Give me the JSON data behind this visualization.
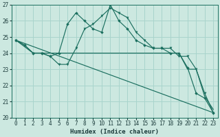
{
  "xlabel": "Humidex (Indice chaleur)",
  "xlim": [
    -0.5,
    23.5
  ],
  "ylim": [
    20,
    27
  ],
  "yticks": [
    20,
    21,
    22,
    23,
    24,
    25,
    26,
    27
  ],
  "xticks": [
    0,
    1,
    2,
    3,
    4,
    5,
    6,
    7,
    8,
    9,
    10,
    11,
    12,
    13,
    14,
    15,
    16,
    17,
    18,
    19,
    20,
    21,
    22,
    23
  ],
  "bg_color": "#cce8e0",
  "grid_color": "#a8d4cc",
  "line_color": "#1a6e5e",
  "line1_x": [
    0,
    1,
    2,
    3,
    4,
    5,
    6,
    7,
    8,
    9,
    10,
    11,
    12,
    13,
    14,
    15,
    16,
    17,
    18,
    19,
    20,
    21,
    22,
    23
  ],
  "line1_y": [
    24.8,
    24.5,
    24.0,
    24.0,
    23.8,
    24.0,
    25.8,
    26.5,
    26.0,
    25.5,
    25.3,
    27.0,
    26.0,
    25.5,
    24.8,
    24.5,
    24.3,
    24.3,
    24.0,
    24.0,
    23.1,
    21.5,
    21.2,
    20.3
  ],
  "line2_x": [
    0,
    1,
    2,
    3,
    4,
    5,
    6,
    7,
    8,
    9,
    10,
    11,
    12,
    13,
    14,
    15,
    16,
    17,
    18,
    19,
    20,
    21,
    22,
    23
  ],
  "line2_y": [
    24.8,
    24.5,
    24.0,
    24.0,
    23.8,
    23.3,
    23.3,
    24.3,
    25.5,
    25.8,
    26.3,
    26.8,
    26.5,
    26.2,
    25.3,
    24.8,
    24.3,
    24.3,
    24.3,
    23.8,
    23.8,
    23.0,
    21.5,
    20.3
  ],
  "line3_x": [
    0,
    2,
    3,
    4,
    5,
    6,
    7,
    8,
    9,
    10,
    11,
    12,
    13,
    14,
    15,
    16,
    17,
    18,
    19,
    20,
    21,
    22,
    23
  ],
  "line3_y": [
    24.8,
    24.0,
    24.0,
    24.0,
    24.0,
    24.0,
    24.0,
    24.0,
    24.0,
    24.0,
    24.0,
    24.0,
    24.0,
    24.0,
    24.0,
    24.0,
    24.0,
    24.0,
    24.0,
    23.0,
    23.0,
    21.3,
    20.5
  ],
  "line4_x": [
    0,
    23
  ],
  "line4_y": [
    24.8,
    20.3
  ]
}
